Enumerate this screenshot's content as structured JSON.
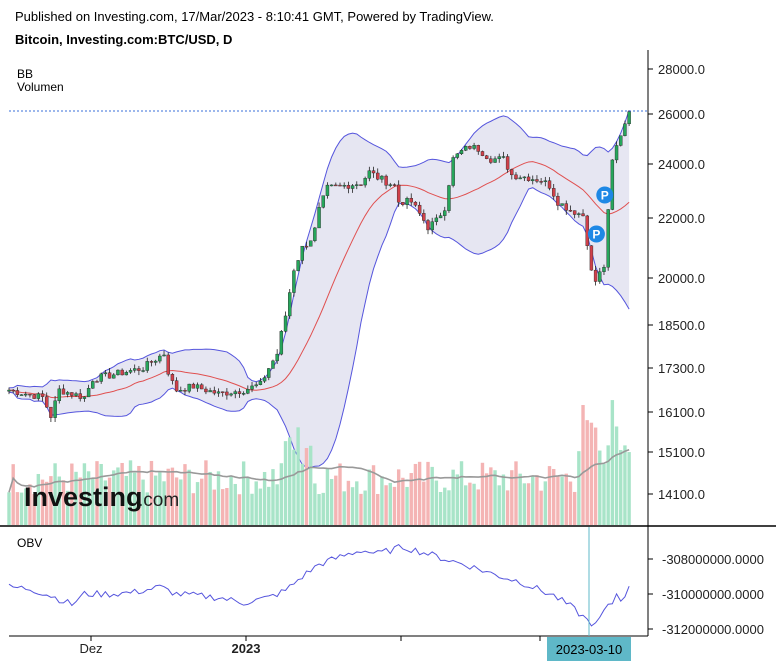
{
  "header": {
    "published": "Published on Investing.com, 17/Mar/2023 - 8:10:41 GMT, Powered by TradingView.",
    "symbol": "Bitcoin, Investing.com:BTC/USD, D"
  },
  "legend": {
    "bb": "BB",
    "volume": "Volumen",
    "obv": "OBV"
  },
  "logo": {
    "text": "Investing",
    "suffix": ".com"
  },
  "colors": {
    "up": "#26a65b",
    "down": "#d0404a",
    "band": "#5555dd",
    "band_fill": "#e6e6f2",
    "basis": "#e05050",
    "vol_up": "#a8e4c8",
    "vol_down": "#f4b4b4",
    "vol_ma": "#999999",
    "obv": "#5555dd",
    "marker": "#1e88e5",
    "date_badge": "#5fb8c8"
  },
  "chart_data": {
    "type": "candlestick",
    "title": "Bitcoin, Investing.com:BTC/USD, D",
    "y_ticks": [
      "28000.0",
      "26000.0",
      "24000.0",
      "22000.0",
      "20000.0",
      "18500.0",
      "17300.0",
      "16100.0",
      "15100.0",
      "14100.0"
    ],
    "obv_ticks": [
      "-308000000.0000",
      "-310000000.0000",
      "-312000000.0000"
    ],
    "x_ticks": [
      "Dez",
      "2023"
    ],
    "last_price": 26100,
    "crosshair_date": "2023-03-10",
    "markers": [
      "P",
      "P"
    ],
    "series_waypoints": [
      [
        0,
        16700
      ],
      [
        4,
        16600
      ],
      [
        8,
        16500
      ],
      [
        10,
        16000
      ],
      [
        12,
        16700
      ],
      [
        15,
        16600
      ],
      [
        18,
        16500
      ],
      [
        20,
        17000
      ],
      [
        24,
        17100
      ],
      [
        28,
        17200
      ],
      [
        32,
        17300
      ],
      [
        35,
        17550
      ],
      [
        37,
        17700
      ],
      [
        38,
        17200
      ],
      [
        39,
        16900
      ],
      [
        40,
        16700
      ],
      [
        44,
        16800
      ],
      [
        50,
        16600
      ],
      [
        56,
        16700
      ],
      [
        60,
        16850
      ],
      [
        62,
        17300
      ],
      [
        64,
        17700
      ],
      [
        66,
        18800
      ],
      [
        68,
        20300
      ],
      [
        70,
        21000
      ],
      [
        72,
        21300
      ],
      [
        73,
        21600
      ],
      [
        74,
        22300
      ],
      [
        76,
        23100
      ],
      [
        80,
        23200
      ],
      [
        84,
        23300
      ],
      [
        86,
        23700
      ],
      [
        88,
        23500
      ],
      [
        92,
        23200
      ],
      [
        93,
        22600
      ],
      [
        96,
        22600
      ],
      [
        100,
        21700
      ],
      [
        102,
        21900
      ],
      [
        104,
        22400
      ],
      [
        106,
        24200
      ],
      [
        108,
        24500
      ],
      [
        110,
        24700
      ],
      [
        112,
        24600
      ],
      [
        115,
        24200
      ],
      [
        118,
        24200
      ],
      [
        120,
        23600
      ],
      [
        124,
        23500
      ],
      [
        127,
        23400
      ],
      [
        129,
        23200
      ],
      [
        131,
        22600
      ],
      [
        134,
        22300
      ],
      [
        137,
        22100
      ],
      [
        138,
        21200
      ],
      [
        139,
        20200
      ],
      [
        140,
        19900
      ],
      [
        142,
        20400
      ],
      [
        143,
        22200
      ],
      [
        144,
        24100
      ],
      [
        145,
        24700
      ],
      [
        146,
        25200
      ],
      [
        148,
        26100
      ]
    ],
    "obv_waypoints": [
      [
        0,
        -309600000
      ],
      [
        5,
        -309700000
      ],
      [
        10,
        -310100000
      ],
      [
        15,
        -310600000
      ],
      [
        18,
        -310000000
      ],
      [
        24,
        -310000000
      ],
      [
        30,
        -309900000
      ],
      [
        36,
        -309600000
      ],
      [
        40,
        -310000000
      ],
      [
        50,
        -310200000
      ],
      [
        56,
        -310500000
      ],
      [
        62,
        -310200000
      ],
      [
        66,
        -309800000
      ],
      [
        70,
        -309000000
      ],
      [
        74,
        -308300000
      ],
      [
        80,
        -307800000
      ],
      [
        84,
        -307500000
      ],
      [
        88,
        -307700000
      ],
      [
        94,
        -307300000
      ],
      [
        100,
        -307700000
      ],
      [
        104,
        -308000000
      ],
      [
        110,
        -308400000
      ],
      [
        116,
        -308900000
      ],
      [
        122,
        -309300000
      ],
      [
        126,
        -309700000
      ],
      [
        130,
        -310100000
      ],
      [
        134,
        -310700000
      ],
      [
        138,
        -311500000
      ],
      [
        140,
        -311800000
      ],
      [
        142,
        -311000000
      ],
      [
        144,
        -310500000
      ],
      [
        145,
        -310000000
      ],
      [
        146,
        -310300000
      ],
      [
        148,
        -309700000
      ]
    ]
  }
}
